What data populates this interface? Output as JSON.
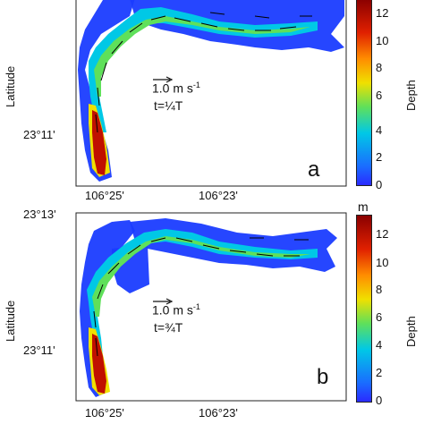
{
  "panels": [
    {
      "letter": "a",
      "lat_label": "Latitude",
      "lat_ticks": [
        "23°11'"
      ],
      "lon_ticks": [
        "106°25'",
        "106°23'"
      ],
      "scale_text": "1.0 m s",
      "scale_exp": "-1",
      "time_label": "t=¼T",
      "colorbar": {
        "unit": "",
        "label": "Depth",
        "ticks": [
          "12",
          "10",
          "8",
          "6",
          "4",
          "2",
          "0"
        ]
      }
    },
    {
      "letter": "b",
      "lat_label": "Latitude",
      "lat_ticks": [
        "23°13'",
        "23°11'"
      ],
      "lon_ticks": [
        "106°25'",
        "106°23'"
      ],
      "scale_text": "1.0 m s",
      "scale_exp": "-1",
      "time_label": "t=¾T",
      "colorbar": {
        "unit": "m",
        "label": "Depth",
        "ticks": [
          "12",
          "10",
          "8",
          "6",
          "4",
          "2",
          "0"
        ]
      }
    }
  ],
  "colors": {
    "shallow": "#1a3cff",
    "mid": "#00c8e6",
    "green": "#5fe05a",
    "yellow": "#f0e000",
    "deep": "#c01000",
    "frame": "#222222",
    "arrow": "#000000"
  },
  "colormap": "jet",
  "depth_range_m": [
    0,
    13.5
  ]
}
